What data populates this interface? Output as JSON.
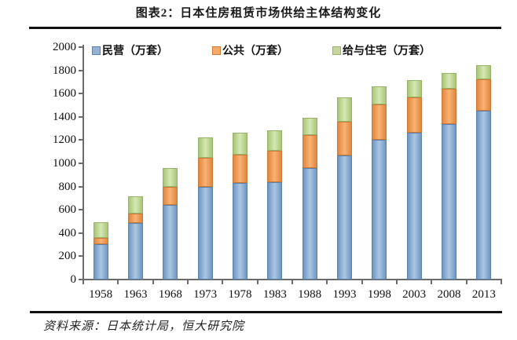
{
  "title": "图表2：日本住房租赁市场供给主体结构变化",
  "source": "资料来源：日本统计局，恒大研究院",
  "colors": {
    "private_blue": "#95b3d7",
    "public_orange": "#f6aa66",
    "company_green": "#c3d69b",
    "axis_gray": "#6b6b6b",
    "rule_black": "#111111"
  },
  "chart_data": {
    "type": "bar",
    "stacked": true,
    "title": "图表2：日本住房租赁市场供给主体结构变化",
    "xlabel": "",
    "ylabel": "",
    "unit": "万套",
    "categories": [
      "1958",
      "1963",
      "1968",
      "1973",
      "1978",
      "1983",
      "1988",
      "1993",
      "1998",
      "2003",
      "2008",
      "2013"
    ],
    "series": [
      {
        "name": "民营（万套）",
        "values": [
          305,
          485,
          645,
          795,
          830,
          835,
          960,
          1065,
          1205,
          1265,
          1335,
          1455
        ]
      },
      {
        "name": "公共（万套）",
        "values": [
          55,
          80,
          155,
          255,
          245,
          275,
          280,
          290,
          305,
          300,
          305,
          270
        ]
      },
      {
        "name": "给与住宅（万套）",
        "values": [
          130,
          150,
          160,
          175,
          190,
          175,
          155,
          210,
          155,
          150,
          135,
          120
        ]
      }
    ],
    "totals": [
      490,
      715,
      960,
      1225,
      1265,
      1285,
      1395,
      1565,
      1665,
      1715,
      1775,
      1845
    ],
    "ylim": [
      0,
      2000
    ],
    "ytick_step": 200,
    "ytick_labels": [
      "0",
      "200",
      "400",
      "600",
      "800",
      "1000",
      "1200",
      "1400",
      "1600",
      "1800",
      "2000"
    ],
    "legend_position": "top-inside",
    "grid": false
  }
}
